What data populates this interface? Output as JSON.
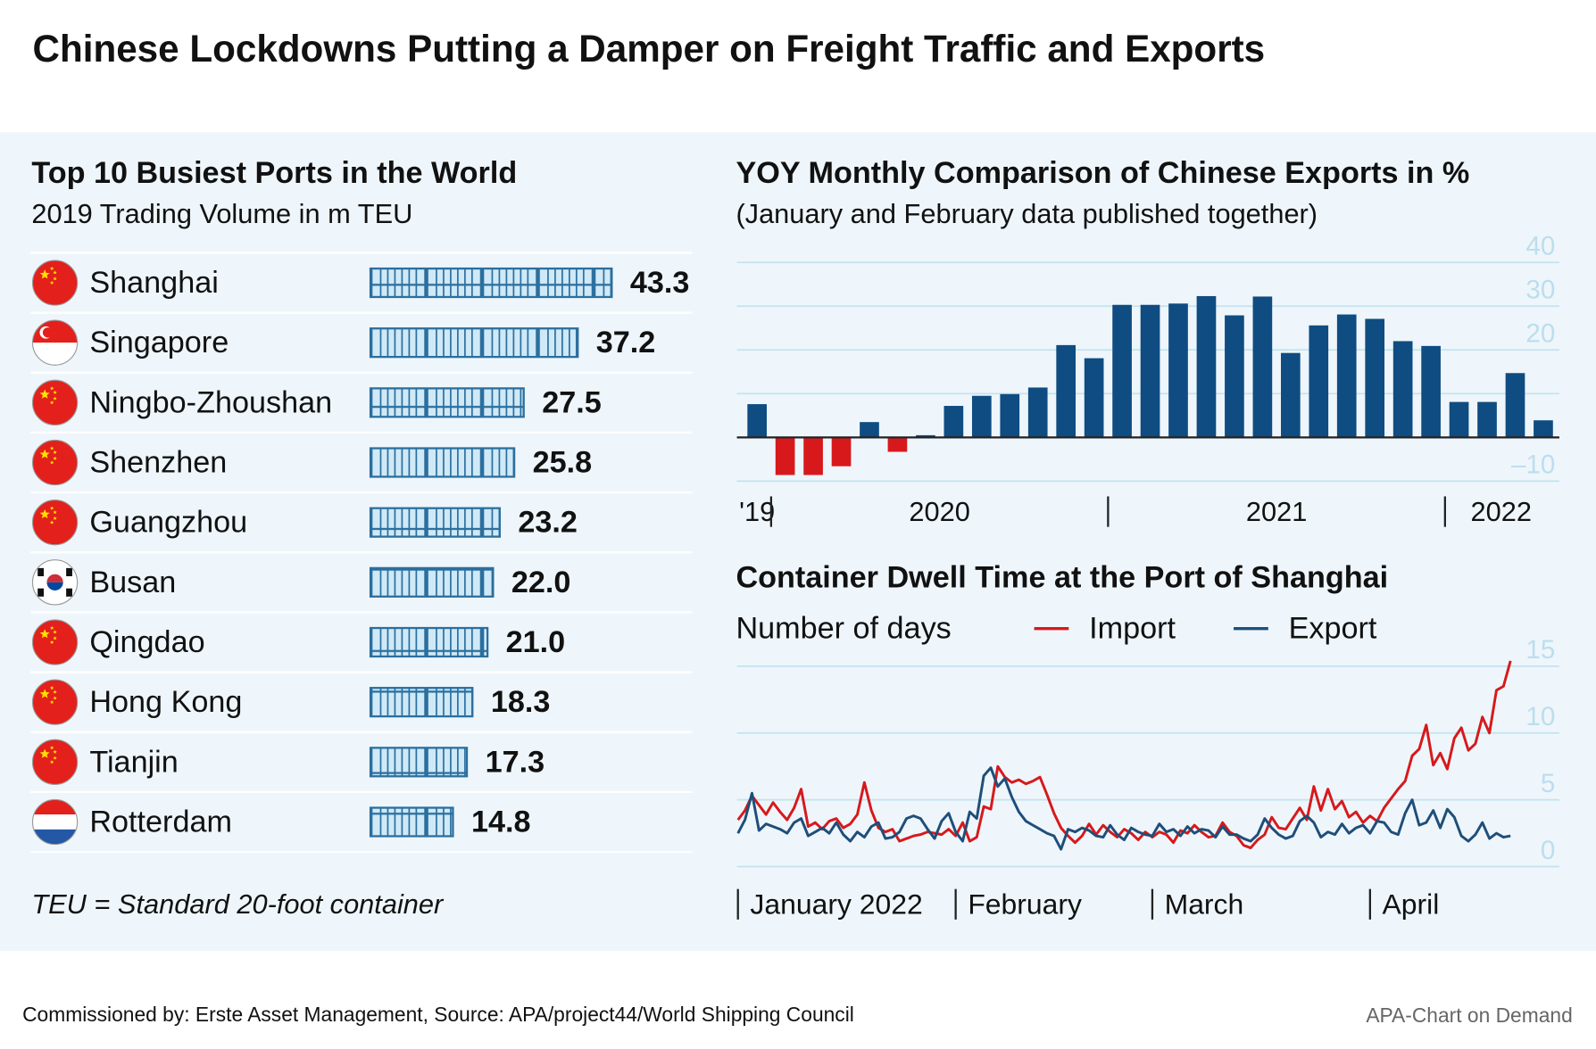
{
  "title": "Chinese Lockdowns Putting a Damper on Freight Traffic and Exports",
  "footer": {
    "source": "Commissioned by: Erste Asset Management, Source: APA/project44/World Shipping Council",
    "credit": "APA-Chart on Demand"
  },
  "chart_data": [
    {
      "type": "bar",
      "horizontal": true,
      "title": "Top 10 Busiest Ports in the World",
      "subtitle": "2019 Trading Volume in m TEU",
      "categories": [
        "Shanghai",
        "Singapore",
        "Ningbo-Zhoushan",
        "Shenzhen",
        "Guangzhou",
        "Busan",
        "Qingdao",
        "Hong Kong",
        "Tianjin",
        "Rotterdam"
      ],
      "values": [
        43.3,
        37.2,
        27.5,
        25.8,
        23.2,
        22,
        21,
        18.3,
        17.3,
        14.8
      ],
      "value_labels": [
        "43.3",
        "37.2",
        "27.5",
        "25.8",
        "23.2",
        "22.0",
        "21.0",
        "18.3",
        "17.3",
        "14.8"
      ],
      "color": "#cfe9f7",
      "note": "TEU = Standard 20-foot container"
    },
    {
      "type": "bar",
      "title": "YOY Monthly Comparison of Chinese Exports in %",
      "subtitle": "(January and February data published together)",
      "categories": [
        "'19",
        "2020",
        null,
        null,
        null,
        null,
        null,
        null,
        null,
        null,
        null,
        null,
        null,
        "2021",
        null,
        null,
        null,
        null,
        null,
        null,
        null,
        null,
        null,
        null,
        null,
        "2022",
        null,
        null,
        null
      ],
      "values": [
        7.6,
        -8.6,
        -8.6,
        -6.6,
        3.5,
        -3.3,
        0.5,
        7.2,
        9.5,
        9.9,
        11.4,
        21.1,
        18.1,
        30.3,
        30.3,
        30.6,
        32.3,
        27.9,
        32.2,
        19.3,
        25.6,
        28.1,
        27.1,
        22,
        20.9,
        8.1,
        8.1,
        14.7,
        3.9
      ],
      "color": "#0f4c81",
      "negative_color": "#d7191c",
      "ylim": [
        -10,
        40
      ],
      "yticks": [
        {
          "value": -10,
          "label": "–10"
        },
        {
          "value": 0,
          "label": null
        },
        {
          "value": 10,
          "label": null
        },
        20,
        30,
        40
      ],
      "grid": true
    },
    {
      "type": "line",
      "title": "Container Dwell Time at the Port of Shanghai",
      "y_label": "Number of days",
      "categories": [
        "January 2022",
        null,
        null,
        null,
        null,
        null,
        null,
        null,
        null,
        null,
        null,
        null,
        null,
        null,
        null,
        null,
        null,
        null,
        null,
        null,
        null,
        null,
        null,
        null,
        null,
        null,
        null,
        null,
        null,
        null,
        null,
        "February",
        null,
        null,
        null,
        null,
        null,
        null,
        null,
        null,
        null,
        null,
        null,
        null,
        null,
        null,
        null,
        null,
        null,
        null,
        null,
        null,
        null,
        null,
        null,
        null,
        null,
        null,
        null,
        "March",
        null,
        null,
        null,
        null,
        null,
        null,
        null,
        null,
        null,
        null,
        null,
        null,
        null,
        null,
        null,
        null,
        null,
        null,
        null,
        null,
        null,
        null,
        null,
        null,
        null,
        null,
        null,
        null,
        null,
        null,
        "April",
        null,
        null,
        null,
        null,
        null,
        null,
        null,
        null,
        null,
        null,
        null,
        null,
        null,
        null,
        null,
        null,
        null,
        null,
        null,
        null
      ],
      "series": [
        {
          "name": "Import",
          "color": "#d7191c",
          "values": [
            3.5,
            4.2,
            5.3,
            4.6,
            3.9,
            4.8,
            4.1,
            3.5,
            4.4,
            5.8,
            3.0,
            3.3,
            2.8,
            3.4,
            3.6,
            2.9,
            3.2,
            3.9,
            6.3,
            4.2,
            2.9,
            2.6,
            2.8,
            1.9,
            2.1,
            2.3,
            2.4,
            2.6,
            2.5,
            2.4,
            2.8,
            2.3,
            3.3,
            1.9,
            2.2,
            4.5,
            4.3,
            7.5,
            6.7,
            6.3,
            6.5,
            6.2,
            6.4,
            6.7,
            5.4,
            4.0,
            2.9,
            2.3,
            1.8,
            2.3,
            3.2,
            2.4,
            3.1,
            2.6,
            2.2,
            2.8,
            2.5,
            2.0,
            2.6,
            2.2,
            2.6,
            2.4,
            1.8,
            2.7,
            2.5,
            3.1,
            2.6,
            2.2,
            2.3,
            3.3,
            2.6,
            2.3,
            1.6,
            1.4,
            2.0,
            2.4,
            3.7,
            2.9,
            2.8,
            3.6,
            4.4,
            3.5,
            6.0,
            4.2,
            5.8,
            4.3,
            4.9,
            3.7,
            4.1,
            3.3,
            3.8,
            3.4,
            4.4,
            5.1,
            5.8,
            6.4,
            8.3,
            8.8,
            10.6,
            7.6,
            8.5,
            7.3,
            9.6,
            10.4,
            8.7,
            9.2,
            11.2,
            10.0,
            13.2,
            13.5,
            15.4
          ]
        },
        {
          "name": "Export",
          "color": "#1f4e79",
          "values": [
            2.5,
            3.5,
            5.5,
            2.7,
            3.2,
            3.0,
            2.8,
            2.5,
            3.3,
            3.6,
            2.3,
            2.6,
            2.9,
            2.5,
            3.3,
            2.4,
            1.9,
            2.6,
            2.2,
            3.0,
            3.3,
            2.1,
            2.2,
            2.6,
            3.6,
            3.8,
            3.6,
            2.8,
            2.1,
            3.4,
            4.0,
            2.6,
            1.9,
            4.1,
            3.6,
            6.8,
            7.4,
            6.0,
            6.6,
            5.2,
            4.1,
            3.4,
            3.1,
            2.8,
            2.5,
            2.3,
            1.3,
            2.8,
            2.6,
            2.9,
            2.7,
            2.3,
            2.2,
            3.1,
            2.4,
            2.0,
            2.9,
            2.6,
            2.4,
            2.3,
            3.2,
            2.6,
            2.8,
            2.3,
            3.0,
            2.5,
            2.8,
            2.7,
            2.2,
            3.0,
            2.4,
            2.4,
            2.1,
            1.9,
            2.4,
            3.6,
            2.9,
            2.4,
            2.1,
            2.3,
            3.4,
            3.8,
            3.3,
            2.2,
            2.6,
            2.4,
            3.2,
            2.5,
            2.9,
            3.1,
            2.5,
            3.4,
            3.3,
            2.6,
            2.4,
            4.0,
            5.0,
            3.1,
            3.3,
            4.2,
            2.9,
            4.3,
            3.7,
            2.3,
            1.9,
            2.4,
            3.3,
            2.1,
            2.5,
            2.2,
            2.3
          ]
        }
      ],
      "ylim": [
        0,
        15
      ],
      "yticks": [
        0,
        5,
        10,
        15
      ],
      "grid": true
    }
  ]
}
